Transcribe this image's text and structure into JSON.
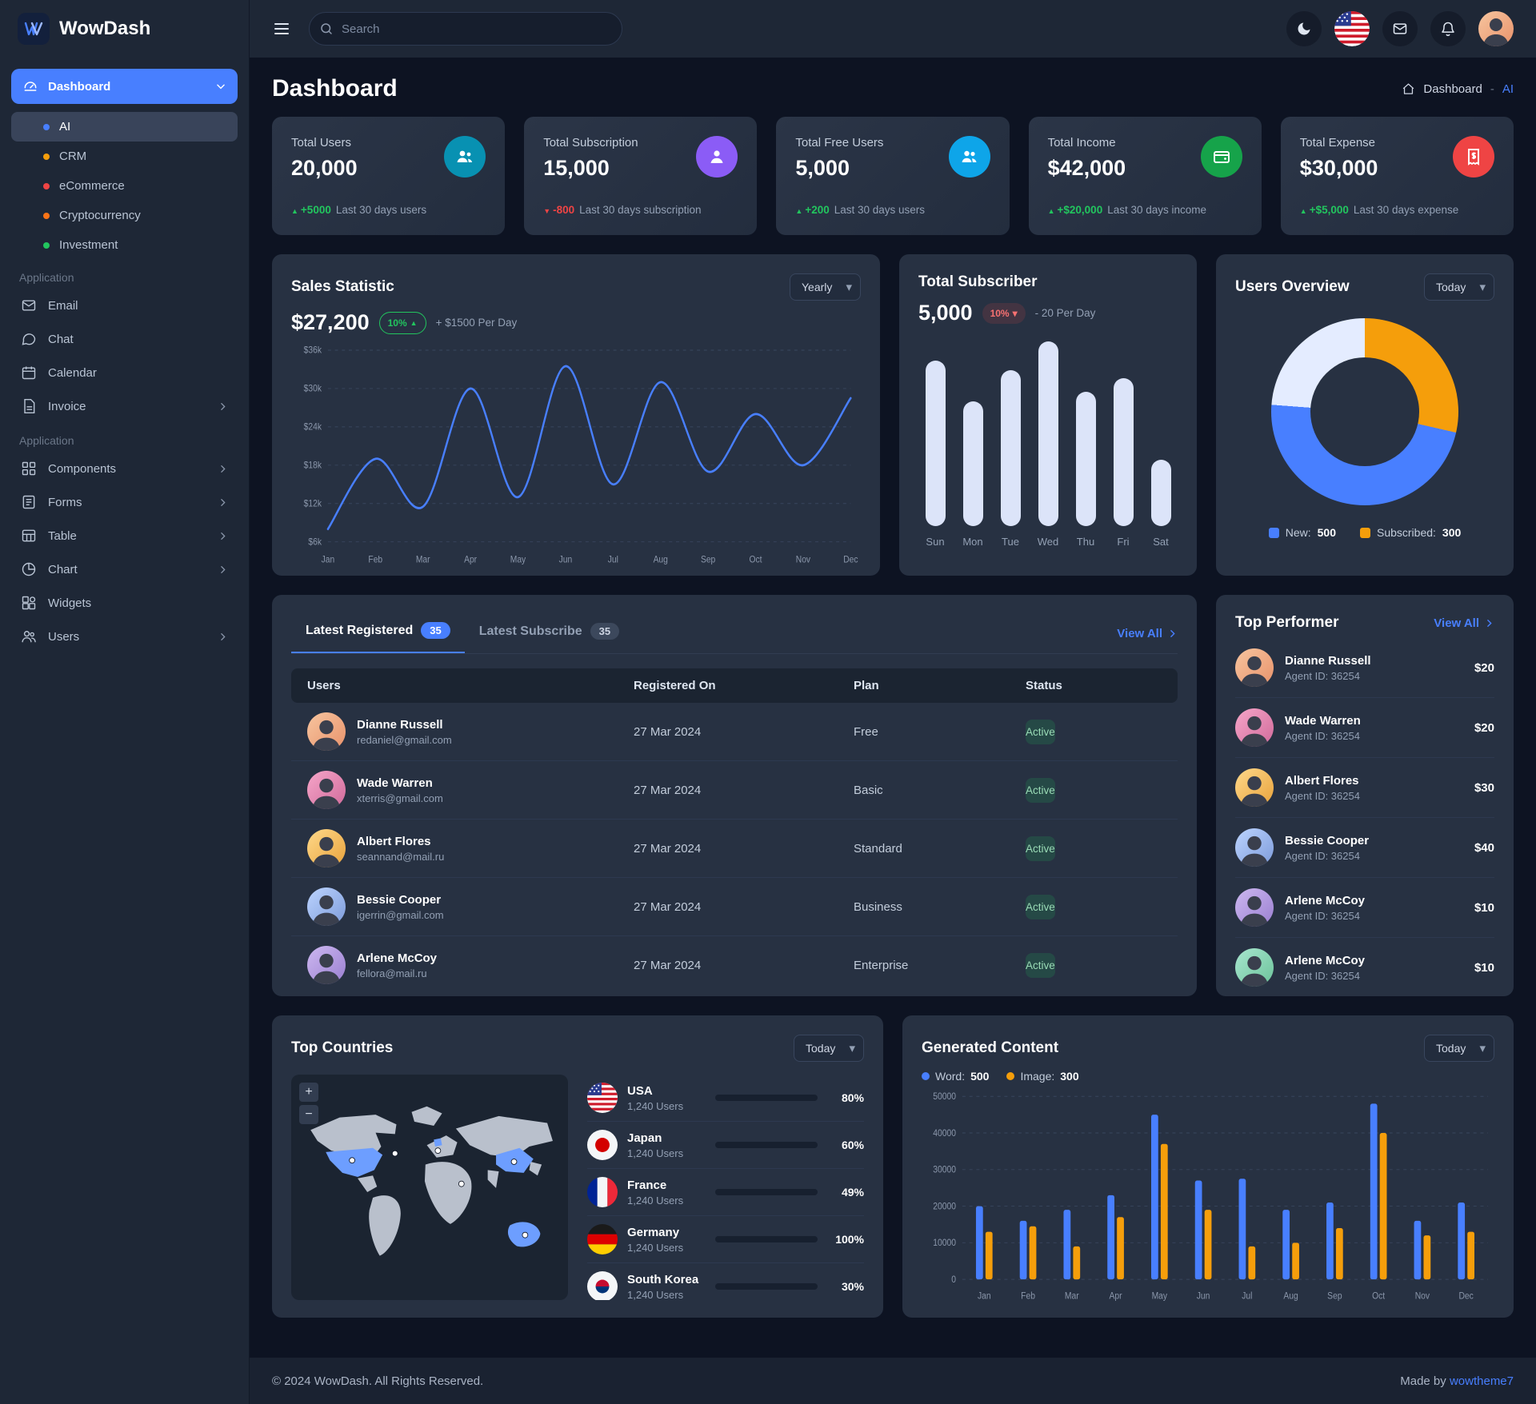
{
  "brand": {
    "name": "WowDash"
  },
  "topbar": {
    "search_placeholder": "Search"
  },
  "sidebar": {
    "dashboard_label": "Dashboard",
    "dashboard_items": [
      {
        "label": "AI",
        "dot": "#487fff"
      },
      {
        "label": "CRM",
        "dot": "#f59e0b"
      },
      {
        "label": "eCommerce",
        "dot": "#ef4444"
      },
      {
        "label": "Cryptocurrency",
        "dot": "#f97316"
      },
      {
        "label": "Investment",
        "dot": "#22c55e"
      }
    ],
    "section1_title": "Application",
    "section1": [
      {
        "label": "Email"
      },
      {
        "label": "Chat"
      },
      {
        "label": "Calendar"
      },
      {
        "label": "Invoice"
      }
    ],
    "section2_title": "Application",
    "section2": [
      {
        "label": "Components"
      },
      {
        "label": "Forms"
      },
      {
        "label": "Table"
      },
      {
        "label": "Chart"
      },
      {
        "label": "Widgets"
      },
      {
        "label": "Users"
      }
    ]
  },
  "page": {
    "title": "Dashboard",
    "breadcrumb_root": "Dashboard",
    "breadcrumb_sep": "-",
    "breadcrumb_current": "AI"
  },
  "stats": [
    {
      "label": "Total Users",
      "value": "20,000",
      "arrow": "▲",
      "delta": "+5000",
      "delta_color": "#22c55e",
      "desc": "Last 30 days users",
      "icon_bg": "#0891b2"
    },
    {
      "label": "Total Subscription",
      "value": "15,000",
      "arrow": "▼",
      "delta": "-800",
      "delta_color": "#ef4444",
      "desc": "Last 30 days subscription",
      "icon_bg": "#8b5cf6"
    },
    {
      "label": "Total Free Users",
      "value": "5,000",
      "arrow": "▲",
      "delta": "+200",
      "delta_color": "#22c55e",
      "desc": "Last 30 days users",
      "icon_bg": "#0ea5e9"
    },
    {
      "label": "Total Income",
      "value": "$42,000",
      "arrow": "▲",
      "delta": "+$20,000",
      "delta_color": "#22c55e",
      "desc": "Last 30 days income",
      "icon_bg": "#16a34a"
    },
    {
      "label": "Total Expense",
      "value": "$30,000",
      "arrow": "▲",
      "delta": "+$5,000",
      "delta_color": "#22c55e",
      "desc": "Last 30 days expense",
      "icon_bg": "#ef4444"
    }
  ],
  "sales": {
    "title": "Sales Statistic",
    "select_value": "Yearly",
    "amount": "$27,200",
    "badge": "10%",
    "badge_arrow": "▲",
    "note": "+ $1500 Per Day"
  },
  "subscriber": {
    "title": "Total Subscriber",
    "value": "5,000",
    "badge": "10%",
    "badge_arrow": "▾",
    "note": "- 20 Per Day"
  },
  "overview": {
    "title": "Users Overview",
    "select_value": "Today",
    "legend": [
      {
        "label": "New:",
        "value": "500",
        "color": "#487fff"
      },
      {
        "label": "Subscribed:",
        "value": "300",
        "color": "#f59e0b"
      }
    ]
  },
  "registered": {
    "tab1": "Latest Registered",
    "tab1_badge": "35",
    "tab2": "Latest Subscribe",
    "tab2_badge": "35",
    "view_all": "View All",
    "columns": [
      "Users",
      "Registered On",
      "Plan",
      "Status"
    ],
    "rows": [
      {
        "name": "Dianne Russell",
        "email": "redaniel@gmail.com",
        "date": "27 Mar 2024",
        "plan": "Free",
        "status": "Active"
      },
      {
        "name": "Wade Warren",
        "email": "xterris@gmail.com",
        "date": "27 Mar 2024",
        "plan": "Basic",
        "status": "Active"
      },
      {
        "name": "Albert Flores",
        "email": "seannand@mail.ru",
        "date": "27 Mar 2024",
        "plan": "Standard",
        "status": "Active"
      },
      {
        "name": "Bessie Cooper",
        "email": "igerrin@gmail.com",
        "date": "27 Mar 2024",
        "plan": "Business",
        "status": "Active"
      },
      {
        "name": "Arlene McCoy",
        "email": "fellora@mail.ru",
        "date": "27 Mar 2024",
        "plan": "Enterprise",
        "status": "Active"
      }
    ]
  },
  "performer": {
    "title": "Top Performer",
    "view_all": "View All",
    "rows": [
      {
        "name": "Dianne Russell",
        "agent": "Agent ID: 36254",
        "amount": "$20"
      },
      {
        "name": "Wade Warren",
        "agent": "Agent ID: 36254",
        "amount": "$20"
      },
      {
        "name": "Albert Flores",
        "agent": "Agent ID: 36254",
        "amount": "$30"
      },
      {
        "name": "Bessie Cooper",
        "agent": "Agent ID: 36254",
        "amount": "$40"
      },
      {
        "name": "Arlene McCoy",
        "agent": "Agent ID: 36254",
        "amount": "$10"
      },
      {
        "name": "Arlene McCoy",
        "agent": "Agent ID: 36254",
        "amount": "$10"
      }
    ]
  },
  "countries": {
    "title": "Top Countries",
    "select_value": "Today",
    "zoom_in": "+",
    "zoom_out": "−",
    "rows": [
      {
        "name": "USA",
        "users": "1,240 Users",
        "pct": "80%",
        "bar_color": "#487fff"
      },
      {
        "name": "Japan",
        "users": "1,240 Users",
        "pct": "60%",
        "bar_color": "#f59e0b"
      },
      {
        "name": "France",
        "users": "1,240 Users",
        "pct": "49%",
        "bar_color": "#f59e0b"
      },
      {
        "name": "Germany",
        "users": "1,240 Users",
        "pct": "100%",
        "bar_color": "#22c55e"
      },
      {
        "name": "South Korea",
        "users": "1,240 Users",
        "pct": "30%",
        "bar_color": "#487fff"
      }
    ]
  },
  "generated": {
    "title": "Generated Content",
    "select_value": "Today",
    "legend": [
      {
        "label": "Word:",
        "value": "500",
        "color": "#487fff"
      },
      {
        "label": "Image:",
        "value": "300",
        "color": "#f59e0b"
      }
    ]
  },
  "footer": {
    "copyright": "© 2024 WowDash. All Rights Reserved.",
    "made_by": "Made by",
    "made_by_link": "wowtheme7"
  },
  "chart_data": [
    {
      "id": "sales_line",
      "type": "line",
      "title": "Sales Statistic",
      "x": [
        "Jan",
        "Feb",
        "Mar",
        "Apr",
        "May",
        "Jun",
        "Jul",
        "Aug",
        "Sep",
        "Oct",
        "Nov",
        "Dec"
      ],
      "series": [
        {
          "name": "Sales",
          "values": [
            8000,
            19000,
            11500,
            30000,
            13000,
            33500,
            15000,
            31000,
            17000,
            26000,
            18000,
            28500
          ]
        }
      ],
      "ylim": [
        6000,
        36000
      ],
      "yticks": [
        6000,
        12000,
        18000,
        24000,
        30000,
        36000
      ],
      "ytick_labels": [
        "$6k",
        "$12k",
        "$18k",
        "$24k",
        "$30k",
        "$36k"
      ],
      "line_color": "#487fff",
      "grid": "dashed",
      "legend_position": "none"
    },
    {
      "id": "subscriber_bars",
      "type": "bar",
      "title": "Total Subscriber",
      "categories": [
        "Sun",
        "Mon",
        "Tue",
        "Wed",
        "Thu",
        "Fri",
        "Sat"
      ],
      "values": [
        850,
        640,
        800,
        950,
        690,
        760,
        340
      ],
      "ylim": [
        0,
        950
      ],
      "bar_color": "#dce4f9",
      "grid": "off"
    },
    {
      "id": "users_donut",
      "type": "pie",
      "title": "Users Overview",
      "slices": [
        {
          "label": "Subscribed",
          "value": 300,
          "color": "#f59e0b"
        },
        {
          "label": "New",
          "value": 500,
          "color": "#487fff"
        },
        {
          "label": "Other",
          "value": 250,
          "color": "#e4ecff"
        }
      ],
      "legend": [
        "New: 500",
        "Subscribed: 300"
      ]
    },
    {
      "id": "generated_bars",
      "type": "bar",
      "title": "Generated Content",
      "categories": [
        "Jan",
        "Feb",
        "Mar",
        "Apr",
        "May",
        "Jun",
        "Jul",
        "Aug",
        "Sep",
        "Oct",
        "Nov",
        "Dec"
      ],
      "series": [
        {
          "name": "Word",
          "color": "#487fff",
          "values": [
            20000,
            16000,
            19000,
            23000,
            45000,
            27000,
            27500,
            19000,
            21000,
            48000,
            16000,
            21000
          ]
        },
        {
          "name": "Image",
          "color": "#f59e0b",
          "values": [
            13000,
            14500,
            9000,
            17000,
            37000,
            19000,
            9000,
            10000,
            14000,
            40000,
            12000,
            13000
          ]
        }
      ],
      "ylim": [
        0,
        50000
      ],
      "yticks": [
        0,
        10000,
        20000,
        30000,
        40000,
        50000
      ],
      "grid": "dashed",
      "legend_position": "top-left"
    }
  ]
}
